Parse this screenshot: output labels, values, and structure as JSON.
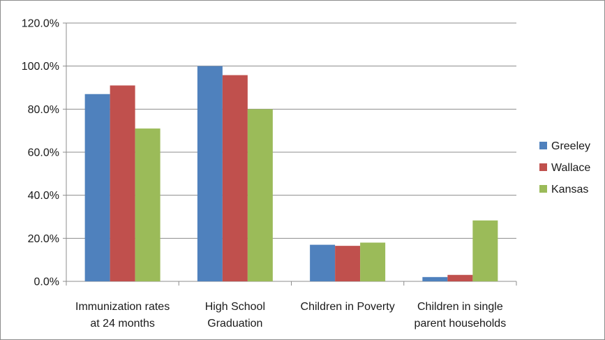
{
  "chart_data": {
    "type": "bar",
    "categories": [
      [
        "Immunization  rates",
        "at 24 months"
      ],
      [
        "High School",
        "Graduation"
      ],
      [
        "Children in Poverty"
      ],
      [
        "Children in single",
        "parent households"
      ]
    ],
    "series": [
      {
        "name": "Greeley",
        "color": "#4F81BD",
        "values": [
          87.0,
          100.0,
          17.0,
          2.0
        ]
      },
      {
        "name": "Wallace",
        "color": "#C0504D",
        "values": [
          91.0,
          95.8,
          16.5,
          3.0
        ]
      },
      {
        "name": "Kansas",
        "color": "#9BBB59",
        "values": [
          71.0,
          80.0,
          18.0,
          28.3
        ]
      }
    ],
    "ylim": [
      0,
      120
    ],
    "yticks": [
      0,
      20,
      40,
      60,
      80,
      100,
      120
    ],
    "ytick_labels": [
      "0.0%",
      "20.0%",
      "40.0%",
      "60.0%",
      "80.0%",
      "100.0%",
      "120.0%"
    ],
    "grid": true,
    "legend": "right",
    "title": "",
    "xlabel": "",
    "ylabel": ""
  }
}
